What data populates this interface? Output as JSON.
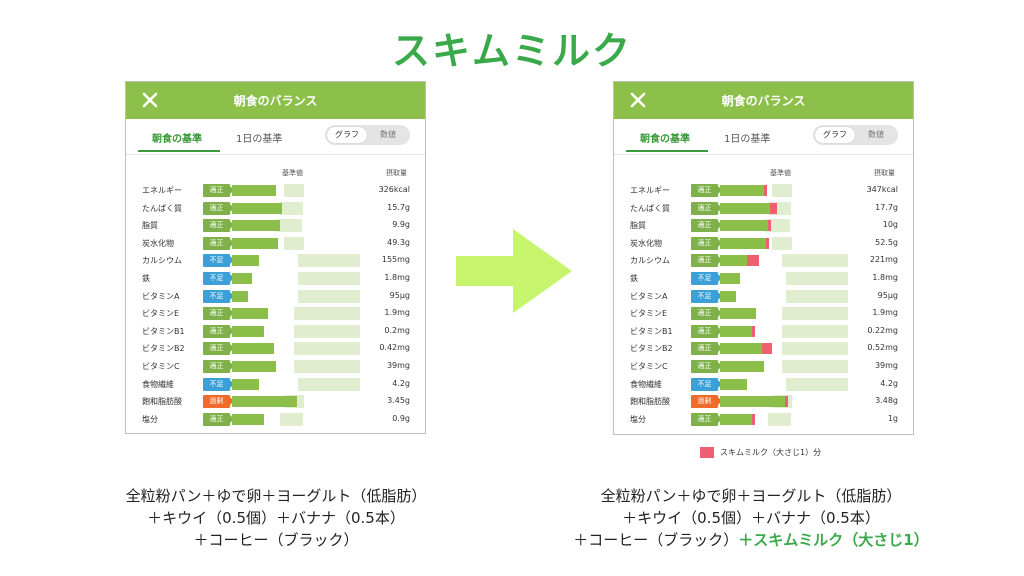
{
  "title": "スキムミルク",
  "colors": {
    "accent": "#3aa94a",
    "header": "#8cc04a",
    "bar": "#8cbf4a",
    "reference": "#e1edcf",
    "added": "#ee5f72",
    "ok": "#7fb04a",
    "low": "#3ba0d8",
    "over": "#f06a2a",
    "arrow": "#c6f56d"
  },
  "status_labels": {
    "ok": "適正",
    "low": "不足",
    "over": "過剰"
  },
  "panel_common": {
    "close_icon": "close-icon",
    "header_title": "朝食のバランス",
    "tab_breakfast": "朝食の基準",
    "tab_day": "1日の基準",
    "toggle_graph": "グラフ",
    "toggle_value": "数値",
    "col_reference": "基準値",
    "col_intake": "摂取量"
  },
  "before": {
    "rows": [
      {
        "label": "エネルギー",
        "status": "ok",
        "value": "326kcal",
        "level": 0.76,
        "added": 0
      },
      {
        "label": "たんぱく質",
        "status": "ok",
        "value": "15.7g",
        "level": 0.87,
        "added": 0
      },
      {
        "label": "脂質",
        "status": "ok",
        "value": "9.9g",
        "level": 0.82,
        "added": 0
      },
      {
        "label": "炭水化物",
        "status": "ok",
        "value": "49.3g",
        "level": 0.8,
        "added": 0
      },
      {
        "label": "カルシウム",
        "status": "low",
        "value": "155mg",
        "level": 0.47,
        "added": 0
      },
      {
        "label": "鉄",
        "status": "low",
        "value": "1.8mg",
        "level": 0.35,
        "added": 0
      },
      {
        "label": "ビタミンA",
        "status": "low",
        "value": "95μg",
        "level": 0.27,
        "added": 0
      },
      {
        "label": "ビタミンE",
        "status": "ok",
        "value": "1.9mg",
        "level": 0.62,
        "added": 0
      },
      {
        "label": "ビタミンB1",
        "status": "ok",
        "value": "0.2mg",
        "level": 0.55,
        "added": 0
      },
      {
        "label": "ビタミンB2",
        "status": "ok",
        "value": "0.42mg",
        "level": 0.73,
        "added": 0
      },
      {
        "label": "ビタミンC",
        "status": "ok",
        "value": "39mg",
        "level": 0.76,
        "added": 0
      },
      {
        "label": "食物繊維",
        "status": "low",
        "value": "4.2g",
        "level": 0.46,
        "added": 0
      },
      {
        "label": "飽和脂肪酸",
        "status": "over",
        "value": "3.45g",
        "level": 1.12,
        "added": 0
      },
      {
        "label": "塩分",
        "status": "ok",
        "value": "0.9g",
        "level": 0.56,
        "added": 0
      }
    ]
  },
  "after": {
    "rows": [
      {
        "label": "エネルギー",
        "status": "ok",
        "value": "347kcal",
        "level": 0.76,
        "added": 0.06
      },
      {
        "label": "たんぱく質",
        "status": "ok",
        "value": "17.7g",
        "level": 0.87,
        "added": 0.12
      },
      {
        "label": "脂質",
        "status": "ok",
        "value": "10g",
        "level": 0.82,
        "added": 0.02
      },
      {
        "label": "炭水化物",
        "status": "ok",
        "value": "52.5g",
        "level": 0.8,
        "added": 0.06
      },
      {
        "label": "カルシウム",
        "status": "ok",
        "value": "221mg",
        "level": 0.47,
        "added": 0.2
      },
      {
        "label": "鉄",
        "status": "low",
        "value": "1.8mg",
        "level": 0.35,
        "added": 0
      },
      {
        "label": "ビタミンA",
        "status": "low",
        "value": "95μg",
        "level": 0.27,
        "added": 0
      },
      {
        "label": "ビタミンE",
        "status": "ok",
        "value": "1.9mg",
        "level": 0.62,
        "added": 0
      },
      {
        "label": "ビタミンB1",
        "status": "ok",
        "value": "0.22mg",
        "level": 0.55,
        "added": 0.06
      },
      {
        "label": "ビタミンB2",
        "status": "ok",
        "value": "0.52mg",
        "level": 0.73,
        "added": 0.17
      },
      {
        "label": "ビタミンC",
        "status": "ok",
        "value": "39mg",
        "level": 0.76,
        "added": 0
      },
      {
        "label": "食物繊維",
        "status": "low",
        "value": "4.2g",
        "level": 0.46,
        "added": 0
      },
      {
        "label": "飽和脂肪酸",
        "status": "over",
        "value": "3.48g",
        "level": 1.12,
        "added": 0.01
      },
      {
        "label": "塩分",
        "status": "ok",
        "value": "1g",
        "level": 0.56,
        "added": 0.06
      }
    ]
  },
  "legend_label": "スキムミルク（大さじ1）分",
  "caption_before": [
    "全粒粉パン＋ゆで卵＋ヨーグルト（低脂肪）",
    "＋キウイ（0.5個）＋バナナ（0.5本）",
    "＋コーヒー（ブラック）"
  ],
  "caption_after": [
    "全粒粉パン＋ゆで卵＋ヨーグルト（低脂肪）",
    "＋キウイ（0.5個）＋バナナ（0.5本）",
    "＋コーヒー（ブラック）",
    "＋スキムミルク（大さじ1）"
  ]
}
